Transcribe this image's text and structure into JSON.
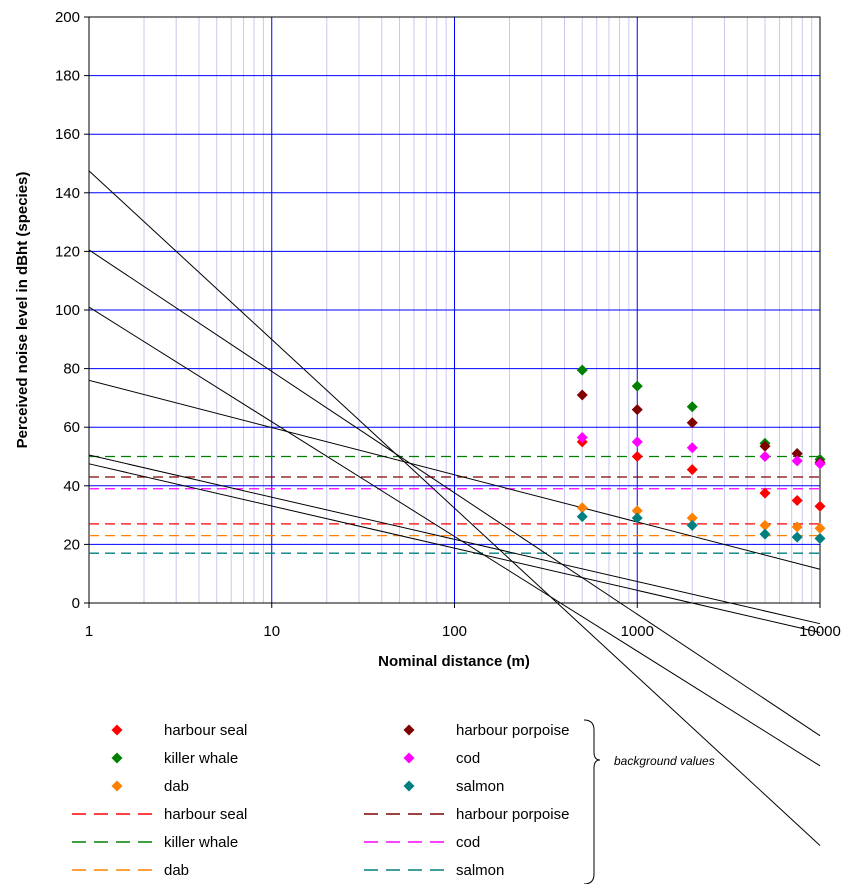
{
  "chart_data": {
    "type": "scatter",
    "x_scale": "log",
    "xlim": [
      1,
      10000
    ],
    "ylim": [
      0,
      200
    ],
    "x_ticks": [
      "1",
      "10",
      "100",
      "1000",
      "10000"
    ],
    "y_ticks": [
      "0",
      "20",
      "40",
      "60",
      "80",
      "100",
      "120",
      "140",
      "160",
      "180",
      "200"
    ],
    "xlabel": "Nominal distance (m)",
    "ylabel": "Perceived noise level in dBht (species)",
    "grid": "major and minor (log) gridlines",
    "series": [
      {
        "name": "harbour seal",
        "color": "#ff0000",
        "marker": "diamond",
        "x": [
          500,
          1000,
          2000,
          5000,
          7500,
          10000
        ],
        "y": [
          55,
          50,
          45.5,
          37.5,
          35,
          33
        ],
        "trend": {
          "a": 101,
          "b": -17
        }
      },
      {
        "name": "killer whale",
        "color": "#008000",
        "marker": "diamond",
        "x": [
          500,
          1000,
          2000,
          5000,
          7500,
          10000
        ],
        "y": [
          79.5,
          74,
          67,
          54.5,
          51,
          49
        ],
        "trend": {
          "a": 147.5,
          "b": -25
        }
      },
      {
        "name": "dab",
        "color": "#ff8000",
        "marker": "diamond",
        "x": [
          500,
          1000,
          2000,
          5000,
          7500,
          10000
        ],
        "y": [
          32.5,
          31.5,
          29,
          26.5,
          26,
          25.5
        ],
        "trend": {
          "a": 50.5,
          "b": -6.25
        }
      },
      {
        "name": "harbour porpoise",
        "color": "#800000",
        "marker": "diamond",
        "x": [
          500,
          1000,
          2000,
          5000,
          7500,
          10000
        ],
        "y": [
          71,
          66,
          61.5,
          53.5,
          51,
          48
        ],
        "trend": {
          "a": 120.5,
          "b": -18
        }
      },
      {
        "name": "cod",
        "color": "#ff00ff",
        "marker": "diamond",
        "x": [
          500,
          1000,
          2000,
          5000,
          7500,
          10000
        ],
        "y": [
          56.5,
          55,
          53,
          50,
          48.5,
          47.5
        ],
        "trend": {
          "a": 76,
          "b": -7
        }
      },
      {
        "name": "salmon",
        "color": "#008080",
        "marker": "diamond",
        "x": [
          500,
          1000,
          2000,
          5000,
          7500,
          10000
        ],
        "y": [
          29.5,
          29,
          26.5,
          23.5,
          22.5,
          22
        ],
        "trend": {
          "a": 47.5,
          "b": -6.25
        }
      }
    ],
    "background_values": [
      {
        "name": "harbour seal",
        "color": "#ff0000",
        "y": 27
      },
      {
        "name": "killer whale",
        "color": "#008000",
        "y": 50
      },
      {
        "name": "dab",
        "color": "#ff8000",
        "y": 23
      },
      {
        "name": "harbour porpoise",
        "color": "#800000",
        "y": 43
      },
      {
        "name": "cod",
        "color": "#ff00ff",
        "y": 39
      },
      {
        "name": "salmon",
        "color": "#008080",
        "y": 17
      }
    ],
    "legend": {
      "placement": "bottom",
      "marker_entries": [
        "harbour seal",
        "harbour porpoise",
        "killer whale",
        "cod",
        "dab",
        "salmon"
      ],
      "line_entries": [
        "harbour seal",
        "harbour porpoise",
        "killer whale",
        "cod",
        "dab",
        "salmon"
      ],
      "brace_note": "background values"
    }
  },
  "colors": {
    "grid": "#0000ff",
    "trendline": "#000000",
    "axis": "#000000"
  }
}
